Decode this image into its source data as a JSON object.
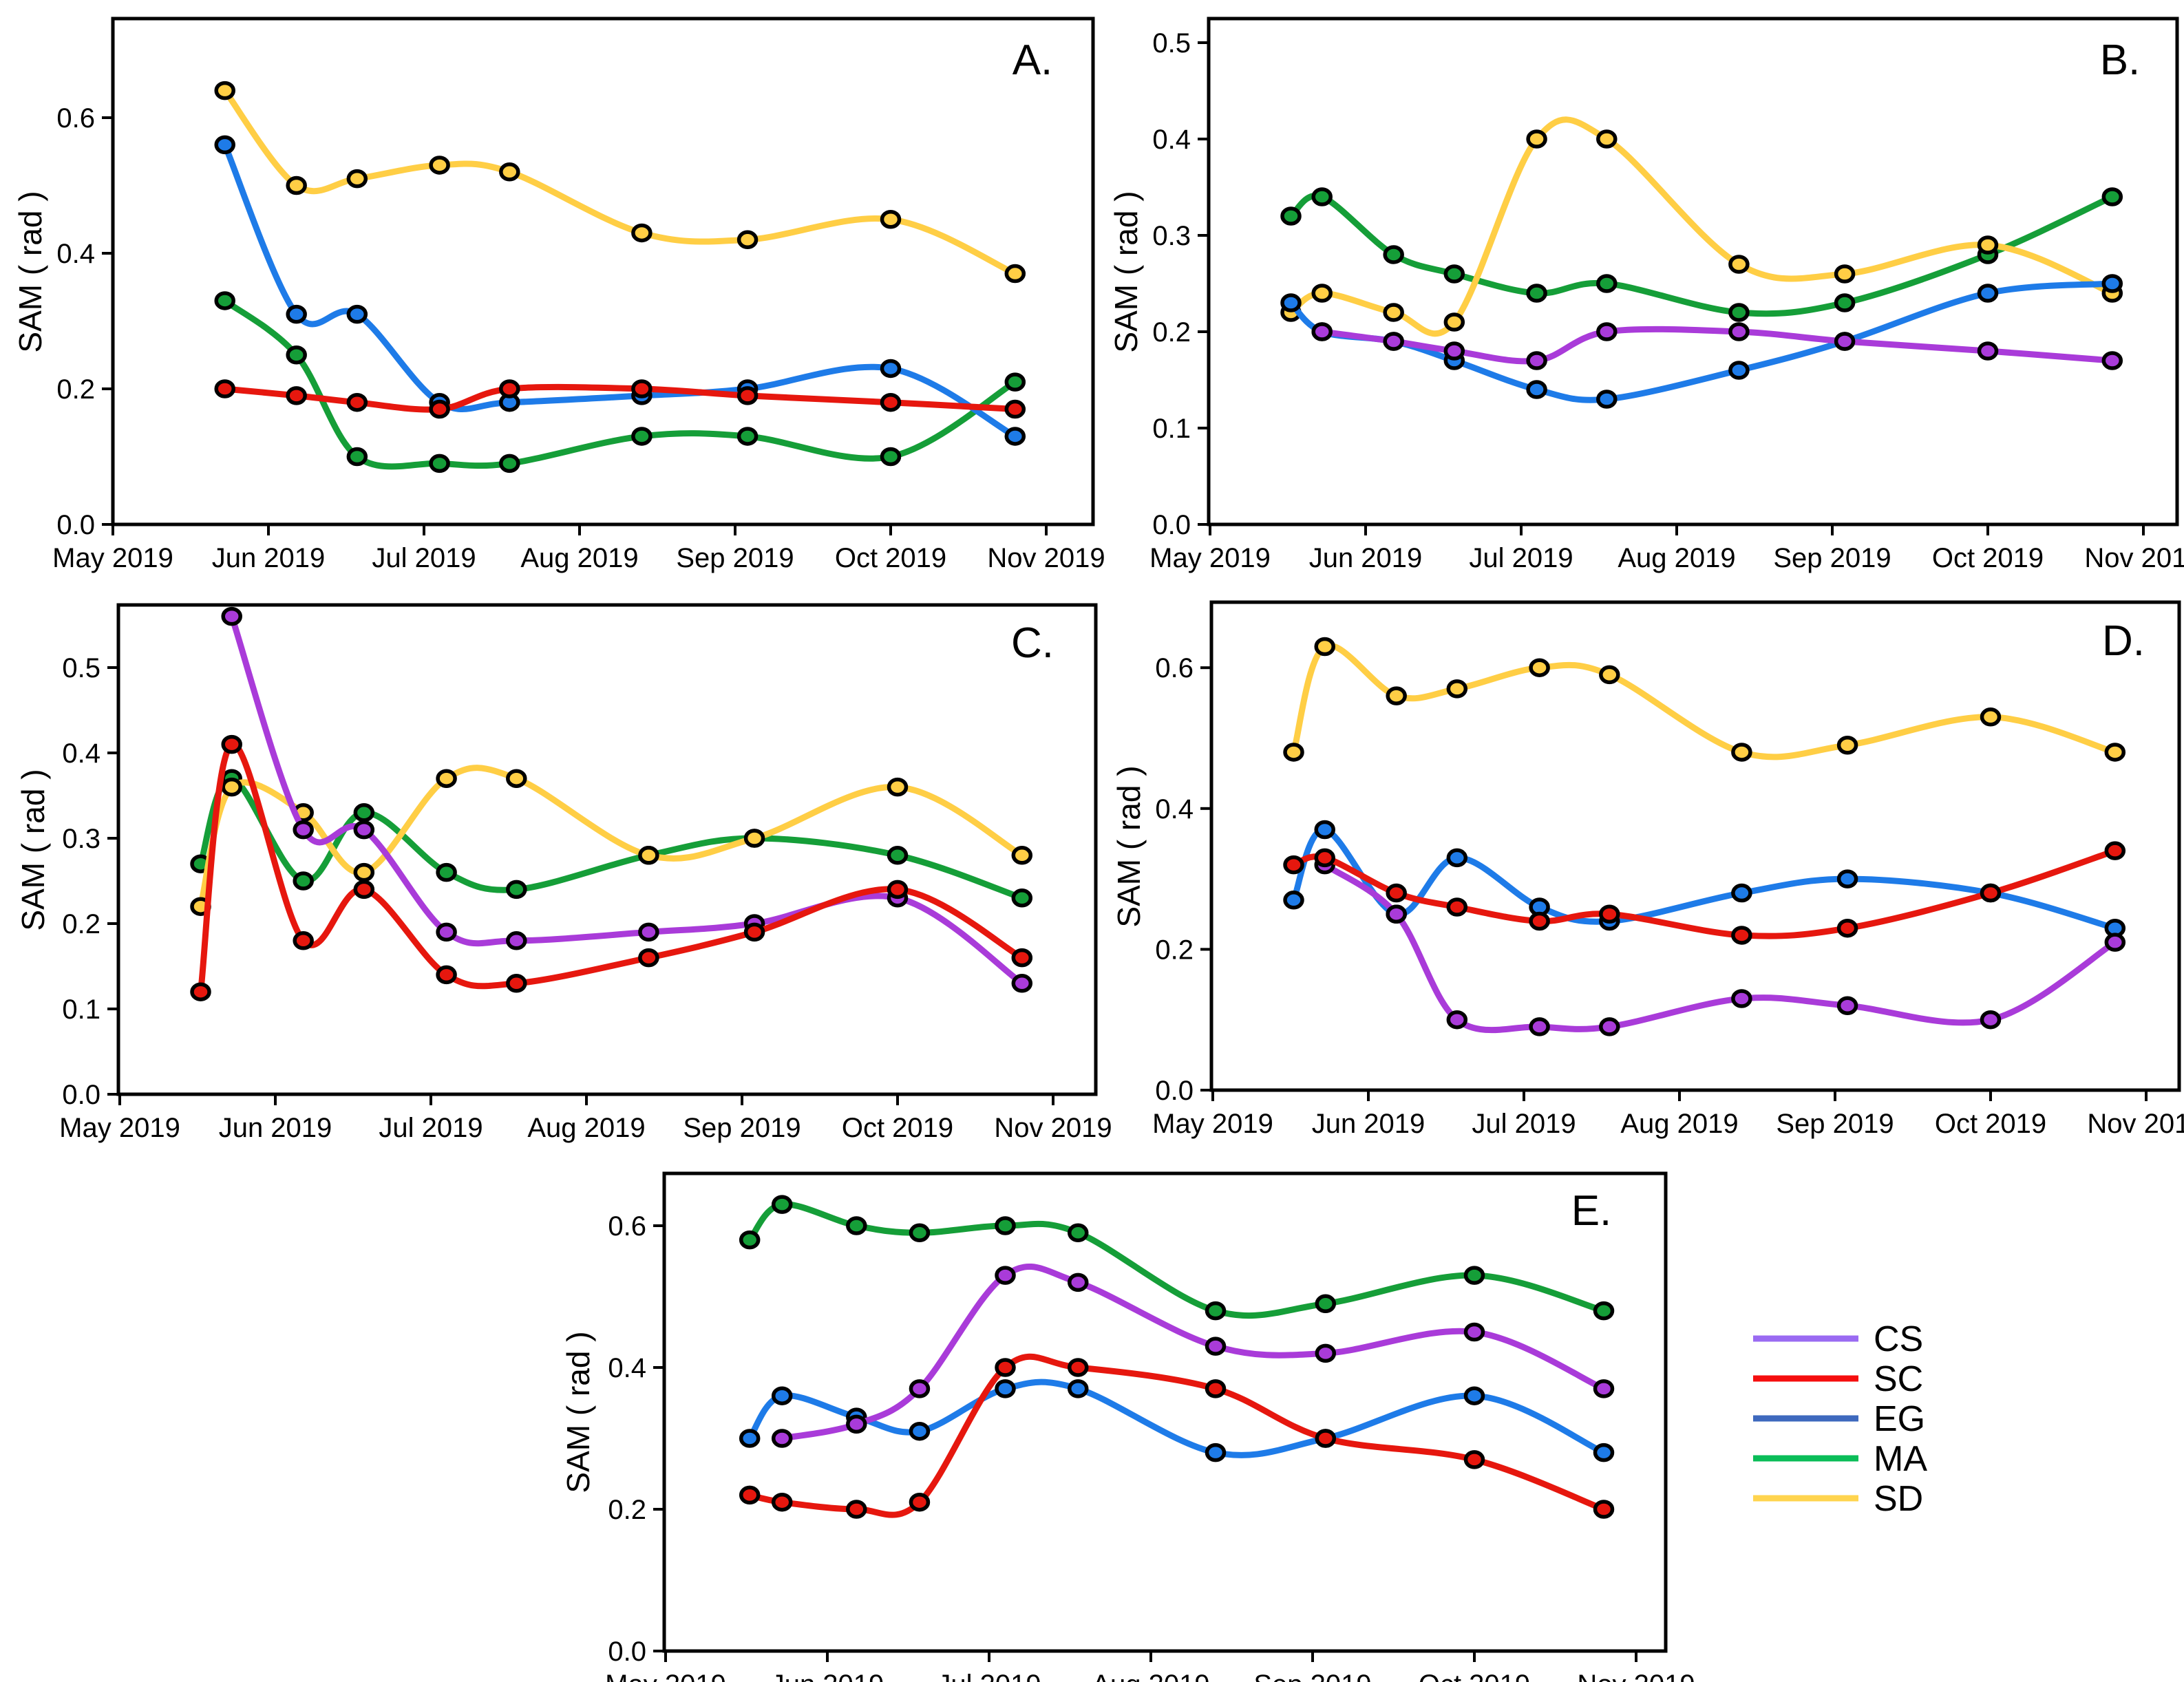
{
  "figure": {
    "description": "Five-panel time series figure of SAM (rad) from May 2019 to Nov 2019",
    "background": "#ffffff"
  },
  "chart_data": {
    "type": "line",
    "ylabel": "SAM ( rad )",
    "x_tick_labels": [
      "May 2019",
      "Jun 2019",
      "Jul 2019",
      "Aug 2019",
      "Sep 2019",
      "Oct 2019",
      "Nov 2019"
    ],
    "x_unit": "months since May 1, 2019",
    "series_colors": {
      "CS": "#A93BD9",
      "SC": "#E6170E",
      "EG": "#1E7BE8",
      "MA": "#159E38",
      "SD": "#FFCE45"
    },
    "marker_style": {
      "stroke": "#000000",
      "stroke_width": 5.5,
      "rx": 12.5,
      "ry": 11
    },
    "line_width": 9,
    "panels": [
      {
        "id": "A",
        "label": "A.",
        "yticks": [
          0.0,
          0.2,
          0.4,
          0.6
        ],
        "ylim": [
          0,
          0.75
        ],
        "grid": false,
        "series": [
          {
            "name": "MA",
            "x": [
              0.72,
              1.18,
              1.57,
              2.1,
              2.55,
              3.4,
              4.08,
              5.0,
              5.8
            ],
            "y": [
              0.33,
              0.25,
              0.1,
              0.09,
              0.09,
              0.13,
              0.13,
              0.1,
              0.21
            ]
          },
          {
            "name": "SD",
            "x": [
              0.72,
              1.18,
              1.57,
              2.1,
              2.55,
              3.4,
              4.08,
              5.0,
              5.8
            ],
            "y": [
              0.64,
              0.5,
              0.51,
              0.53,
              0.52,
              0.43,
              0.42,
              0.45,
              0.37
            ]
          },
          {
            "name": "EG",
            "x": [
              0.72,
              1.18,
              1.57,
              2.1,
              2.55,
              3.4,
              4.08,
              5.0,
              5.8
            ],
            "y": [
              0.56,
              0.31,
              0.31,
              0.18,
              0.18,
              0.19,
              0.2,
              0.23,
              0.13
            ]
          },
          {
            "name": "SC",
            "x": [
              0.72,
              1.18,
              1.57,
              2.1,
              2.55,
              3.4,
              4.08,
              5.0,
              5.8
            ],
            "y": [
              0.2,
              0.19,
              0.18,
              0.17,
              0.2,
              0.2,
              0.19,
              0.18,
              0.17
            ]
          }
        ]
      },
      {
        "id": "B",
        "label": "B.",
        "yticks": [
          0.0,
          0.1,
          0.2,
          0.3,
          0.4,
          0.5
        ],
        "ylim": [
          0,
          0.52
        ],
        "grid": false,
        "series": [
          {
            "name": "MA",
            "x": [
              0.52,
              0.72,
              1.18,
              1.57,
              2.1,
              2.55,
              3.4,
              4.08,
              5.0,
              5.8
            ],
            "y": [
              0.32,
              0.34,
              0.28,
              0.26,
              0.24,
              0.25,
              0.22,
              0.23,
              0.28,
              0.34
            ]
          },
          {
            "name": "SD",
            "x": [
              0.52,
              0.72,
              1.18,
              1.57,
              2.1,
              2.55,
              3.4,
              4.08,
              5.0,
              5.8
            ],
            "y": [
              0.22,
              0.24,
              0.22,
              0.21,
              0.4,
              0.4,
              0.27,
              0.26,
              0.29,
              0.24
            ]
          },
          {
            "name": "EG",
            "x": [
              0.52,
              0.72,
              1.18,
              1.57,
              2.1,
              2.55,
              3.4,
              4.08,
              5.0,
              5.8
            ],
            "y": [
              0.23,
              0.2,
              0.19,
              0.17,
              0.14,
              0.13,
              0.16,
              0.19,
              0.24,
              0.25
            ]
          },
          {
            "name": "CS",
            "x": [
              0.72,
              1.18,
              1.57,
              2.1,
              2.55,
              3.4,
              4.08,
              5.0,
              5.8
            ],
            "y": [
              0.2,
              0.19,
              0.18,
              0.17,
              0.2,
              0.2,
              0.19,
              0.18,
              0.17
            ]
          }
        ]
      },
      {
        "id": "C",
        "label": "C.",
        "yticks": [
          0.0,
          0.1,
          0.2,
          0.3,
          0.4,
          0.5
        ],
        "ylim": [
          0,
          0.57
        ],
        "grid": false,
        "series": [
          {
            "name": "MA",
            "x": [
              0.52,
              0.72,
              1.18,
              1.57,
              2.1,
              2.55,
              3.4,
              4.08,
              5.0,
              5.8
            ],
            "y": [
              0.27,
              0.37,
              0.25,
              0.33,
              0.26,
              0.24,
              0.28,
              0.3,
              0.28,
              0.23
            ]
          },
          {
            "name": "SD",
            "x": [
              0.52,
              0.72,
              1.18,
              1.57,
              2.1,
              2.55,
              3.4,
              4.08,
              5.0,
              5.8
            ],
            "y": [
              0.22,
              0.36,
              0.33,
              0.26,
              0.37,
              0.37,
              0.28,
              0.3,
              0.36,
              0.28
            ]
          },
          {
            "name": "CS",
            "x": [
              0.72,
              1.18,
              1.57,
              2.1,
              2.55,
              3.4,
              4.08,
              5.0,
              5.8
            ],
            "y": [
              0.56,
              0.31,
              0.31,
              0.19,
              0.18,
              0.19,
              0.2,
              0.23,
              0.13
            ]
          },
          {
            "name": "SC",
            "x": [
              0.52,
              0.72,
              1.18,
              1.57,
              2.1,
              2.55,
              3.4,
              4.08,
              5.0,
              5.8
            ],
            "y": [
              0.12,
              0.41,
              0.18,
              0.24,
              0.14,
              0.13,
              0.16,
              0.19,
              0.24,
              0.16
            ]
          }
        ]
      },
      {
        "id": "D",
        "label": "D.",
        "yticks": [
          0.0,
          0.2,
          0.4,
          0.6
        ],
        "ylim": [
          0,
          0.69
        ],
        "grid": false,
        "series": [
          {
            "name": "SD",
            "x": [
              0.52,
              0.72,
              1.18,
              1.57,
              2.1,
              2.55,
              3.4,
              4.08,
              5.0,
              5.8
            ],
            "y": [
              0.48,
              0.63,
              0.56,
              0.57,
              0.6,
              0.59,
              0.48,
              0.49,
              0.53,
              0.48
            ]
          },
          {
            "name": "EG",
            "x": [
              0.52,
              0.72,
              1.18,
              1.57,
              2.1,
              2.55,
              3.4,
              4.08,
              5.0,
              5.8
            ],
            "y": [
              0.27,
              0.37,
              0.25,
              0.33,
              0.26,
              0.24,
              0.28,
              0.3,
              0.28,
              0.23
            ]
          },
          {
            "name": "CS",
            "x": [
              0.72,
              1.18,
              1.57,
              2.1,
              2.55,
              3.4,
              4.08,
              5.0,
              5.8
            ],
            "y": [
              0.32,
              0.25,
              0.1,
              0.09,
              0.09,
              0.13,
              0.12,
              0.1,
              0.21
            ]
          },
          {
            "name": "SC",
            "x": [
              0.52,
              0.72,
              1.18,
              1.57,
              2.1,
              2.55,
              3.4,
              4.08,
              5.0,
              5.8
            ],
            "y": [
              0.32,
              0.33,
              0.28,
              0.26,
              0.24,
              0.25,
              0.22,
              0.23,
              0.28,
              0.34
            ]
          }
        ]
      },
      {
        "id": "E",
        "label": "E.",
        "yticks": [
          0.0,
          0.2,
          0.4,
          0.6
        ],
        "ylim": [
          0,
          0.67
        ],
        "grid": false,
        "series": [
          {
            "name": "MA",
            "x": [
              0.52,
              0.72,
              1.18,
              1.57,
              2.1,
              2.55,
              3.4,
              4.08,
              5.0,
              5.8
            ],
            "y": [
              0.58,
              0.63,
              0.6,
              0.59,
              0.6,
              0.59,
              0.48,
              0.49,
              0.53,
              0.48
            ]
          },
          {
            "name": "EG",
            "x": [
              0.52,
              0.72,
              1.18,
              1.57,
              2.1,
              2.55,
              3.4,
              4.08,
              5.0,
              5.8
            ],
            "y": [
              0.3,
              0.36,
              0.33,
              0.31,
              0.37,
              0.37,
              0.28,
              0.3,
              0.36,
              0.28
            ]
          },
          {
            "name": "CS",
            "x": [
              0.72,
              1.18,
              1.57,
              2.1,
              2.55,
              3.4,
              4.08,
              5.0,
              5.8
            ],
            "y": [
              0.3,
              0.32,
              0.37,
              0.53,
              0.52,
              0.43,
              0.42,
              0.45,
              0.37
            ]
          },
          {
            "name": "SC",
            "x": [
              0.52,
              0.72,
              1.18,
              1.57,
              2.1,
              2.55,
              3.4,
              4.08,
              5.0,
              5.8
            ],
            "y": [
              0.22,
              0.21,
              0.2,
              0.21,
              0.4,
              0.4,
              0.37,
              0.3,
              0.27,
              0.2
            ]
          }
        ]
      }
    ],
    "legend": {
      "position": "bottom-right",
      "entries": [
        {
          "label": "CS",
          "color": "#9A6BF2"
        },
        {
          "label": "SC",
          "color": "#F50E0E"
        },
        {
          "label": "EG",
          "color": "#3E69BE"
        },
        {
          "label": "MA",
          "color": "#0ABD58"
        },
        {
          "label": "SD",
          "color": "#FFD44E"
        }
      ]
    }
  }
}
